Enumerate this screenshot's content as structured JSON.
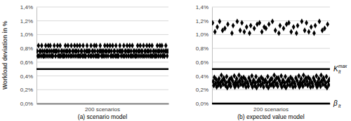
{
  "chart_data": [
    {
      "type": "scatter",
      "title": "(a) scenario model",
      "x_label": "200 scenarios",
      "y_label": "Workload deviation in %",
      "color": "#000000",
      "marker": "diamond",
      "grid": true,
      "tick_labels": "y",
      "xlim": [
        0,
        201
      ],
      "ylim": [
        0,
        1.4
      ],
      "yticks": [
        {
          "value": 0,
          "label": "0,0%"
        },
        {
          "value": 0.2,
          "label": "0,2%"
        },
        {
          "value": 0.4,
          "label": "0,4%"
        },
        {
          "value": 0.6,
          "label": "0,6%"
        },
        {
          "value": 0.8,
          "label": "0,8%"
        },
        {
          "value": 1.0,
          "label": "1,0%"
        },
        {
          "value": 1.2,
          "label": "1,2%"
        },
        {
          "value": 1.4,
          "label": "1,4%"
        }
      ],
      "reference_lines": [
        0.5
      ],
      "x": [
        1,
        2,
        3,
        4,
        5,
        6,
        7,
        8,
        9,
        10,
        11,
        12,
        13,
        14,
        15,
        16,
        17,
        18,
        19,
        20,
        21,
        22,
        23,
        24,
        25,
        26,
        27,
        28,
        29,
        30,
        31,
        32,
        33,
        34,
        35,
        36,
        37,
        38,
        39,
        40,
        41,
        42,
        43,
        44,
        45,
        46,
        47,
        48,
        49,
        50,
        51,
        52,
        53,
        54,
        55,
        56,
        57,
        58,
        59,
        60,
        61,
        62,
        63,
        64,
        65,
        66,
        67,
        68,
        69,
        70,
        71,
        72,
        73,
        74,
        75,
        76,
        77,
        78,
        79,
        80,
        81,
        82,
        83,
        84,
        85,
        86,
        87,
        88,
        89,
        90,
        91,
        92,
        93,
        94,
        95,
        96,
        97,
        98,
        99,
        100,
        101,
        102,
        103,
        104,
        105,
        106,
        107,
        108,
        109,
        110,
        111,
        112,
        113,
        114,
        115,
        116,
        117,
        118,
        119,
        120,
        121,
        122,
        123,
        124,
        125,
        126,
        127,
        128,
        129,
        130,
        131,
        132,
        133,
        134,
        135,
        136,
        137,
        138,
        139,
        140,
        141,
        142,
        143,
        144,
        145,
        146,
        147,
        148,
        149,
        150,
        151,
        152,
        153,
        154,
        155,
        156,
        157,
        158,
        159,
        160,
        161,
        162,
        163,
        164,
        165,
        166,
        167,
        168,
        169,
        170,
        171,
        172,
        173,
        174,
        175,
        176,
        177,
        178,
        179,
        180,
        181,
        182,
        183,
        184,
        185,
        186,
        187,
        188,
        189,
        190,
        191,
        192,
        193,
        194,
        195,
        196,
        197,
        198,
        199,
        200
      ],
      "values": [
        0.76,
        0.69,
        0.84,
        0.69,
        0.76,
        0.76,
        0.69,
        0.84,
        0.76,
        0.69,
        0.69,
        0.76,
        0.69,
        0.84,
        0.76,
        0.69,
        0.76,
        0.84,
        0.69,
        0.76,
        0.84,
        0.69,
        0.76,
        0.69,
        0.69,
        0.76,
        0.84,
        0.76,
        0.69,
        0.76,
        0.76,
        0.84,
        0.69,
        0.76,
        0.69,
        0.84,
        0.69,
        0.76,
        0.76,
        0.69,
        0.69,
        0.76,
        0.69,
        0.84,
        0.76,
        0.69,
        0.76,
        0.84,
        0.69,
        0.76,
        0.76,
        0.69,
        0.84,
        0.69,
        0.76,
        0.76,
        0.69,
        0.84,
        0.76,
        0.69,
        0.76,
        0.84,
        0.69,
        0.76,
        0.69,
        0.84,
        0.69,
        0.76,
        0.76,
        0.69,
        0.84,
        0.69,
        0.76,
        0.69,
        0.69,
        0.76,
        0.84,
        0.76,
        0.69,
        0.76,
        0.76,
        0.69,
        0.84,
        0.69,
        0.76,
        0.76,
        0.69,
        0.84,
        0.76,
        0.69,
        0.84,
        0.69,
        0.76,
        0.69,
        0.69,
        0.76,
        0.84,
        0.76,
        0.69,
        0.76,
        0.69,
        0.76,
        0.69,
        0.84,
        0.76,
        0.69,
        0.76,
        0.84,
        0.69,
        0.76,
        0.76,
        0.84,
        0.69,
        0.76,
        0.69,
        0.84,
        0.69,
        0.76,
        0.76,
        0.69,
        0.84,
        0.69,
        0.76,
        0.69,
        0.69,
        0.76,
        0.84,
        0.76,
        0.69,
        0.76,
        0.76,
        0.69,
        0.84,
        0.69,
        0.76,
        0.76,
        0.69,
        0.84,
        0.76,
        0.69,
        0.76,
        0.84,
        0.69,
        0.76,
        0.69,
        0.84,
        0.69,
        0.76,
        0.76,
        0.69,
        0.69,
        0.76,
        0.69,
        0.84,
        0.76,
        0.69,
        0.76,
        0.84,
        0.69,
        0.76,
        0.76,
        0.69,
        0.84,
        0.69,
        0.76,
        0.76,
        0.69,
        0.84,
        0.76,
        0.69,
        0.76,
        0.84,
        0.69,
        0.76,
        0.69,
        0.84,
        0.69,
        0.76,
        0.76,
        0.69,
        0.69,
        0.76,
        0.69,
        0.84,
        0.76,
        0.69,
        0.76,
        0.84,
        0.69,
        0.76,
        0.84,
        0.69,
        0.76,
        0.69,
        0.69,
        0.76,
        0.84,
        0.76,
        0.69,
        0.76
      ]
    },
    {
      "type": "scatter",
      "title": "(b) expected value model",
      "x_label": "200 scenarios",
      "color": "#000000",
      "marker": "diamond",
      "grid": true,
      "tick_labels": "y",
      "xlim": [
        0,
        201
      ],
      "ylim": [
        0,
        1.4
      ],
      "yticks": [
        {
          "value": 0,
          "label": "0,0%"
        },
        {
          "value": 0.2,
          "label": "0,2%"
        },
        {
          "value": 0.4,
          "label": "0,4%"
        },
        {
          "value": 0.6,
          "label": "0,6%"
        },
        {
          "value": 0.8,
          "label": "0,8%"
        },
        {
          "value": 1.0,
          "label": "1,0%"
        },
        {
          "value": 1.2,
          "label": "1,2%"
        },
        {
          "value": 1.4,
          "label": "1,4%"
        }
      ],
      "reference_lines": [
        0.5,
        0
      ],
      "annotations": [
        {
          "text": "K",
          "sub": "lt",
          "sup": "max",
          "y": 0.5
        },
        {
          "text": "β",
          "sub": "lt",
          "y": 0
        }
      ],
      "x": [
        1,
        2,
        3,
        4,
        5,
        6,
        7,
        8,
        9,
        10,
        11,
        12,
        13,
        14,
        15,
        16,
        17,
        18,
        19,
        20,
        21,
        22,
        23,
        24,
        25,
        26,
        27,
        28,
        29,
        30,
        31,
        32,
        33,
        34,
        35,
        36,
        37,
        38,
        39,
        40,
        41,
        42,
        43,
        44,
        45,
        46,
        47,
        48,
        49,
        50,
        51,
        52,
        53,
        54,
        55,
        56,
        57,
        58,
        59,
        60,
        61,
        62,
        63,
        64,
        65,
        66,
        67,
        68,
        69,
        70,
        71,
        72,
        73,
        74,
        75,
        76,
        77,
        78,
        79,
        80,
        81,
        82,
        83,
        84,
        85,
        86,
        87,
        88,
        89,
        90,
        91,
        92,
        93,
        94,
        95,
        96,
        97,
        98,
        99,
        100,
        101,
        102,
        103,
        104,
        105,
        106,
        107,
        108,
        109,
        110,
        111,
        112,
        113,
        114,
        115,
        116,
        117,
        118,
        119,
        120,
        121,
        122,
        123,
        124,
        125,
        126,
        127,
        128,
        129,
        130,
        131,
        132,
        133,
        134,
        135,
        136,
        137,
        138,
        139,
        140,
        141,
        142,
        143,
        144,
        145,
        146,
        147,
        148,
        149,
        150,
        151,
        152,
        153,
        154,
        155,
        156,
        157,
        158,
        159,
        160,
        161,
        162,
        163,
        164,
        165,
        166,
        167,
        168,
        169,
        170,
        171,
        172,
        173,
        174,
        175,
        176,
        177,
        178,
        179,
        180,
        181,
        182,
        183,
        184,
        185,
        186,
        187,
        188,
        189,
        190,
        191,
        192,
        193,
        194,
        195,
        196,
        197,
        198,
        199,
        200
      ],
      "values": [
        1.17,
        0.32,
        0.26,
        0.38,
        1.04,
        0.29,
        0.35,
        0.24,
        1.11,
        0.31,
        0.27,
        0.36,
        1.19,
        0.3,
        0.25,
        0.41,
        0.33,
        1.06,
        0.28,
        0.37,
        0.34,
        1.09,
        0.26,
        0.3,
        0.39,
        0.23,
        1.15,
        0.32,
        0.27,
        0.35,
        0.29,
        0.25,
        0.37,
        1.02,
        0.33,
        1.13,
        0.28,
        0.4,
        0.24,
        0.31,
        0.27,
        0.36,
        1.19,
        0.3,
        0.25,
        0.41,
        0.33,
        1.06,
        0.28,
        0.37,
        1.17,
        0.32,
        0.26,
        0.38,
        1.04,
        0.29,
        0.35,
        0.24,
        1.11,
        0.31,
        0.29,
        0.25,
        0.37,
        1.02,
        0.33,
        1.13,
        0.28,
        0.4,
        0.24,
        0.31,
        0.34,
        1.09,
        0.26,
        0.3,
        0.39,
        0.23,
        1.15,
        0.32,
        0.27,
        0.35,
        1.17,
        0.32,
        0.26,
        0.38,
        1.04,
        0.29,
        0.35,
        0.24,
        1.11,
        0.31,
        0.34,
        1.09,
        0.26,
        0.3,
        0.39,
        0.23,
        1.15,
        0.32,
        0.27,
        0.35,
        0.27,
        0.36,
        1.19,
        0.3,
        0.25,
        0.41,
        0.33,
        1.06,
        0.28,
        0.37,
        0.29,
        0.25,
        0.37,
        1.02,
        0.33,
        1.13,
        0.28,
        0.4,
        0.24,
        0.31,
        0.34,
        1.09,
        0.26,
        0.3,
        0.39,
        0.23,
        1.15,
        0.32,
        0.27,
        0.35,
        1.17,
        0.32,
        0.26,
        0.38,
        1.04,
        0.29,
        0.35,
        0.24,
        1.11,
        0.31,
        0.29,
        0.25,
        0.37,
        1.02,
        0.33,
        1.13,
        0.28,
        0.4,
        0.24,
        0.31,
        0.27,
        0.36,
        1.19,
        0.3,
        0.25,
        0.41,
        0.33,
        1.06,
        0.28,
        0.37,
        1.17,
        0.32,
        0.26,
        0.38,
        1.04,
        0.29,
        0.35,
        0.24,
        1.11,
        0.31,
        0.29,
        0.25,
        0.37,
        1.02,
        0.33,
        1.13,
        0.28,
        0.4,
        0.24,
        0.31,
        0.27,
        0.36,
        1.19,
        0.3,
        0.25,
        0.41,
        0.33,
        1.06,
        0.28,
        0.37,
        0.34,
        1.09,
        0.26,
        0.3,
        0.39,
        0.23,
        1.15,
        0.32,
        0.27,
        0.35
      ]
    }
  ]
}
